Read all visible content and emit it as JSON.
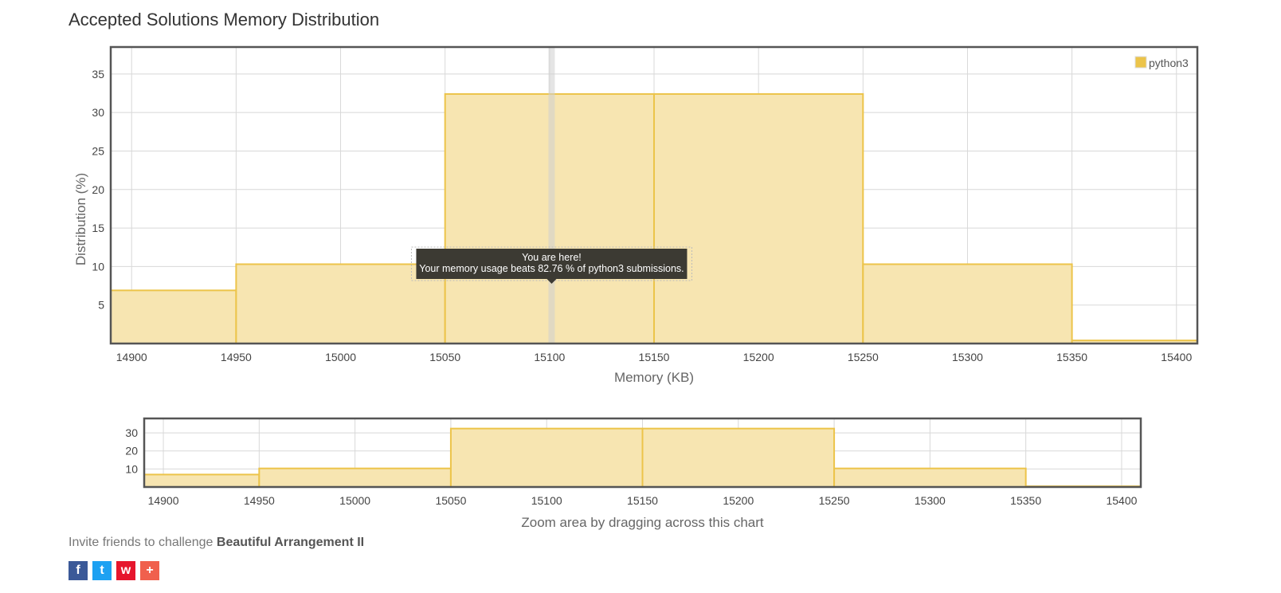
{
  "page": {
    "title": "Accepted Solutions Memory Distribution",
    "invite_prefix": "Invite friends to challenge ",
    "problem_name": "Beautiful Arrangement II",
    "share": [
      {
        "name": "facebook",
        "glyph": "f"
      },
      {
        "name": "twitter",
        "glyph": "t"
      },
      {
        "name": "weibo",
        "glyph": "w"
      },
      {
        "name": "more",
        "glyph": "+"
      }
    ]
  },
  "colors": {
    "bar_fill": "#f7e5b1",
    "bar_stroke": "#ecc44a",
    "grid": "#d8d8d8",
    "frame": "#555555",
    "tooltip_bg": "#3c3a33",
    "marker": "#cfcfcf"
  },
  "chart_data": [
    {
      "type": "bar",
      "role": "main",
      "xlabel": "Memory (KB)",
      "ylabel": "Distribution (%)",
      "legend": {
        "entry": "python3",
        "placement": "top-right"
      },
      "bins": [
        {
          "start": 14890,
          "end": 14950,
          "value": 6.9
        },
        {
          "start": 14950,
          "end": 15050,
          "value": 10.3
        },
        {
          "start": 15050,
          "end": 15150,
          "value": 32.4
        },
        {
          "start": 15150,
          "end": 15250,
          "value": 32.4
        },
        {
          "start": 15250,
          "end": 15350,
          "value": 10.3
        },
        {
          "start": 15350,
          "end": 15410,
          "value": 0.4
        }
      ],
      "xlim": [
        14890,
        15410
      ],
      "ylim": [
        0,
        38.5
      ],
      "x_ticks": [
        14900,
        14950,
        15000,
        15050,
        15100,
        15150,
        15200,
        15250,
        15300,
        15350,
        15400
      ],
      "y_ticks": [
        5,
        10,
        15,
        20,
        25,
        30,
        35
      ],
      "marker_x": 15101,
      "tooltip": {
        "line1": "You are here!",
        "line2": "Your memory usage beats 82.76 % of python3 submissions."
      },
      "grid": true
    },
    {
      "type": "bar",
      "role": "zoom",
      "xlabel": "Zoom area by dragging across this chart",
      "bins": [
        {
          "start": 14890,
          "end": 14950,
          "value": 6.9
        },
        {
          "start": 14950,
          "end": 15050,
          "value": 10.3
        },
        {
          "start": 15050,
          "end": 15150,
          "value": 32.4
        },
        {
          "start": 15150,
          "end": 15250,
          "value": 32.4
        },
        {
          "start": 15250,
          "end": 15350,
          "value": 10.3
        },
        {
          "start": 15350,
          "end": 15410,
          "value": 0.4
        }
      ],
      "xlim": [
        14890,
        15410
      ],
      "ylim": [
        0,
        38
      ],
      "x_ticks": [
        14900,
        14950,
        15000,
        15050,
        15100,
        15150,
        15200,
        15250,
        15300,
        15350,
        15400
      ],
      "y_ticks": [
        10,
        20,
        30
      ],
      "grid": true
    }
  ]
}
